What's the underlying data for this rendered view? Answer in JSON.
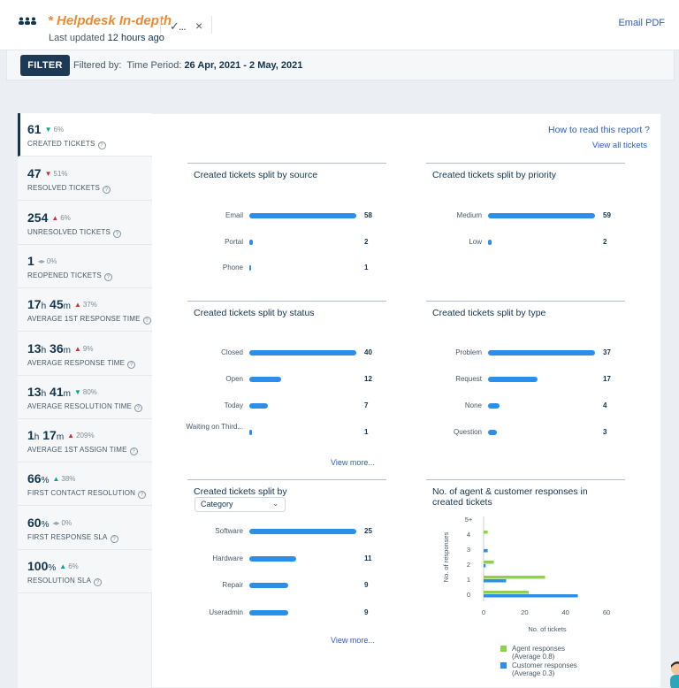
{
  "header": {
    "title": "* Helpdesk In-depth",
    "updated_prefix": "Last updated ",
    "updated_value": "12 hours ago",
    "check_label": "✓...",
    "close_label": "×",
    "email_label": "Email PDF"
  },
  "filter": {
    "button_label": "FILTER",
    "filtered_by": "Filtered by:",
    "period_label": "Time Period:",
    "period_value": "26 Apr, 2021 - 2 May, 2021"
  },
  "links": {
    "how_to_read": "How to read this report ?",
    "view_all": "View all tickets"
  },
  "kpis": [
    {
      "value": "61",
      "unit": "",
      "value2": "",
      "unit2": "",
      "trend": "down",
      "delta": "6%",
      "label": "CREATED TICKETS"
    },
    {
      "value": "47",
      "unit": "",
      "value2": "",
      "unit2": "",
      "trend": "down-bad",
      "delta": "51%",
      "label": "RESOLVED TICKETS"
    },
    {
      "value": "254",
      "unit": "",
      "value2": "",
      "unit2": "",
      "trend": "up",
      "delta": "6%",
      "label": "UNRESOLVED TICKETS"
    },
    {
      "value": "1",
      "unit": "",
      "value2": "",
      "unit2": "",
      "trend": "flat",
      "delta": "0%",
      "label": "REOPENED TICKETS"
    },
    {
      "value": "17",
      "unit": "h",
      "value2": "45",
      "unit2": "m",
      "trend": "up",
      "delta": "37%",
      "label": "AVERAGE 1ST RESPONSE TIME"
    },
    {
      "value": "13",
      "unit": "h",
      "value2": "36",
      "unit2": "m",
      "trend": "up",
      "delta": "9%",
      "label": "AVERAGE RESPONSE TIME"
    },
    {
      "value": "13",
      "unit": "h",
      "value2": "41",
      "unit2": "m",
      "trend": "down",
      "delta": "80%",
      "label": "AVERAGE RESOLUTION TIME"
    },
    {
      "value": "1",
      "unit": "h",
      "value2": "17",
      "unit2": "m",
      "trend": "up",
      "delta": "209%",
      "label": "AVERAGE 1ST ASSIGN TIME"
    },
    {
      "value": "66",
      "unit": "%",
      "value2": "",
      "unit2": "",
      "trend": "up-good",
      "delta": "38%",
      "label": "FIRST CONTACT RESOLUTION"
    },
    {
      "value": "60",
      "unit": "%",
      "value2": "",
      "unit2": "",
      "trend": "flat",
      "delta": "0%",
      "label": "FIRST RESPONSE SLA"
    },
    {
      "value": "100",
      "unit": "%",
      "value2": "",
      "unit2": "",
      "trend": "up-good",
      "delta": "6%",
      "label": "RESOLUTION SLA"
    }
  ],
  "cards": {
    "source": {
      "title": "Created tickets split by source"
    },
    "priority": {
      "title": "Created tickets split by priority"
    },
    "status": {
      "title": "Created tickets split by status",
      "view_more": "View more..."
    },
    "type": {
      "title": "Created tickets split by type"
    },
    "category": {
      "title": "Created tickets split by",
      "select_value": "Category",
      "view_more": "View more..."
    },
    "responses": {
      "title": "No. of agent & customer responses in created tickets"
    }
  },
  "colors": {
    "bar": "#2b8fe9",
    "agent": "#8fd14f",
    "customer": "#2b8fe9",
    "title_orange": "#e98b35"
  },
  "chart_data": [
    {
      "type": "bar",
      "title": "Created tickets split by source",
      "categories": [
        "Email",
        "Portal",
        "Phone"
      ],
      "values": [
        58,
        2,
        1
      ],
      "max": 58
    },
    {
      "type": "bar",
      "title": "Created tickets split by priority",
      "categories": [
        "Medium",
        "Low"
      ],
      "values": [
        59,
        2
      ],
      "max": 59
    },
    {
      "type": "bar",
      "title": "Created tickets split by status",
      "categories": [
        "Closed",
        "Open",
        "Today",
        "Waiting on Third..."
      ],
      "values": [
        40,
        12,
        7,
        1
      ],
      "max": 40
    },
    {
      "type": "bar",
      "title": "Created tickets split by type",
      "categories": [
        "Problem",
        "Request",
        "None",
        "Question"
      ],
      "values": [
        37,
        17,
        4,
        3
      ],
      "max": 37
    },
    {
      "type": "bar",
      "title": "Created tickets split by",
      "categories": [
        "Software",
        "Hardware",
        "Repair",
        "Useradmin"
      ],
      "values": [
        25,
        11,
        9,
        9
      ],
      "max": 25
    },
    {
      "type": "bar",
      "title": "No. of agent & customer responses in created tickets",
      "xlabel": "No. of tickets",
      "ylabel": "No. of responses",
      "categories": [
        "0",
        "1",
        "2",
        "3",
        "4",
        "5+"
      ],
      "xlim": [
        0,
        60
      ],
      "xticks": [
        "0",
        "20",
        "40",
        "60"
      ],
      "series": [
        {
          "name": "Agent responses",
          "legend_sub": "(Average 0.8)",
          "values": [
            22,
            30,
            5,
            0,
            2,
            0
          ]
        },
        {
          "name": "Customer responses",
          "legend_sub": "(Average 0.3)",
          "values": [
            46,
            11,
            1,
            2,
            0,
            0
          ]
        }
      ]
    }
  ]
}
